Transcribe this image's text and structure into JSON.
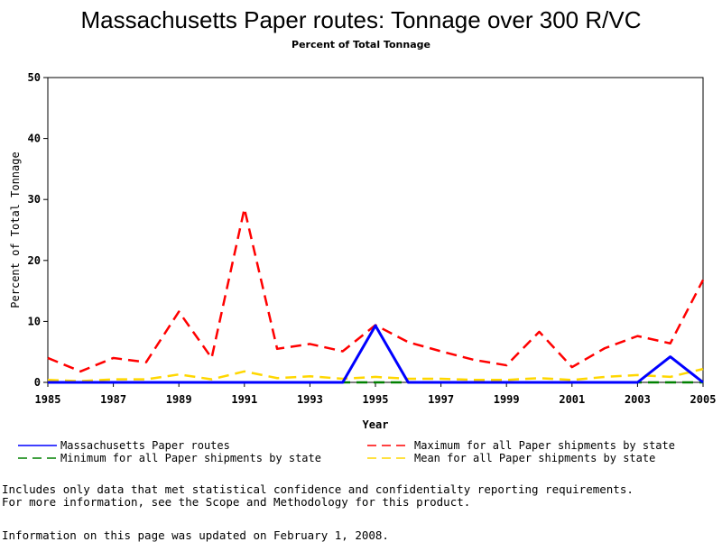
{
  "chart_data": {
    "type": "line",
    "title": "Massachusetts Paper routes: Tonnage over 300 R/VC",
    "subtitle": "Percent of Total Tonnage",
    "xlabel": "Year",
    "ylabel": "Percent of Total Tonnage",
    "xlim": [
      1985,
      2005
    ],
    "ylim": [
      0,
      50
    ],
    "x_ticks": [
      1985,
      1987,
      1989,
      1991,
      1993,
      1995,
      1997,
      1999,
      2001,
      2003,
      2005
    ],
    "y_ticks": [
      0,
      10,
      20,
      30,
      40,
      50
    ],
    "grid": false,
    "legend_position": "bottom",
    "series": [
      {
        "name": "Massachusetts Paper routes",
        "color": "#0000ff",
        "dash": "solid",
        "points": [
          [
            1985,
            0
          ],
          [
            1986,
            0
          ],
          [
            1987,
            0
          ],
          [
            1988,
            0
          ],
          [
            1989,
            0
          ],
          [
            1990,
            0
          ],
          [
            1991,
            0
          ],
          [
            1992,
            0
          ],
          [
            1993,
            0
          ],
          [
            1994,
            0
          ],
          [
            1995,
            9.3
          ],
          [
            1996,
            0
          ],
          [
            1997,
            0
          ],
          [
            1998,
            0
          ],
          [
            1999,
            0
          ],
          [
            2000,
            0
          ],
          [
            2001,
            0
          ],
          [
            2002,
            0
          ],
          [
            2003,
            0
          ],
          [
            2004,
            4.2
          ],
          [
            2005,
            0
          ]
        ]
      },
      {
        "name": "Maximum for all Paper shipments by state",
        "color": "#ff0000",
        "dash": "dashed",
        "points": [
          [
            1985,
            4
          ],
          [
            1986,
            1.8
          ],
          [
            1987,
            4
          ],
          [
            1988,
            3.3
          ],
          [
            1989,
            11.6
          ],
          [
            1990,
            4
          ],
          [
            1991,
            28.5
          ],
          [
            1992,
            5.5
          ],
          [
            1993,
            6.3
          ],
          [
            1994,
            5.1
          ],
          [
            1995,
            9.4
          ],
          [
            1996,
            6.6
          ],
          [
            1997,
            5.1
          ],
          [
            1998,
            3.7
          ],
          [
            1999,
            2.8
          ],
          [
            2000,
            8.3
          ],
          [
            2001,
            2.5
          ],
          [
            2002,
            5.6
          ],
          [
            2003,
            7.6
          ],
          [
            2004,
            6.4
          ],
          [
            2005,
            16.8
          ]
        ]
      },
      {
        "name": "Minimum for all Paper shipments by state",
        "color": "#008000",
        "dash": "dashed",
        "points": [
          [
            1985,
            0
          ],
          [
            1986,
            0
          ],
          [
            1987,
            0
          ],
          [
            1988,
            0
          ],
          [
            1989,
            0
          ],
          [
            1990,
            0
          ],
          [
            1991,
            0
          ],
          [
            1992,
            0
          ],
          [
            1993,
            0
          ],
          [
            1994,
            0
          ],
          [
            1995,
            0
          ],
          [
            1996,
            0
          ],
          [
            1997,
            0
          ],
          [
            1998,
            0
          ],
          [
            1999,
            0
          ],
          [
            2000,
            0
          ],
          [
            2001,
            0
          ],
          [
            2002,
            0
          ],
          [
            2003,
            0
          ],
          [
            2004,
            0
          ],
          [
            2005,
            0
          ]
        ]
      },
      {
        "name": "Mean for all Paper shipments by state",
        "color": "#ffd700",
        "dash": "dashed",
        "points": [
          [
            1985,
            0.4
          ],
          [
            1986,
            0.2
          ],
          [
            1987,
            0.5
          ],
          [
            1988,
            0.5
          ],
          [
            1989,
            1.3
          ],
          [
            1990,
            0.5
          ],
          [
            1991,
            1.8
          ],
          [
            1992,
            0.7
          ],
          [
            1993,
            1.0
          ],
          [
            1994,
            0.6
          ],
          [
            1995,
            0.9
          ],
          [
            1996,
            0.6
          ],
          [
            1997,
            0.6
          ],
          [
            1998,
            0.4
          ],
          [
            1999,
            0.4
          ],
          [
            2000,
            0.7
          ],
          [
            2001,
            0.4
          ],
          [
            2002,
            0.9
          ],
          [
            2003,
            1.2
          ],
          [
            2004,
            0.9
          ],
          [
            2005,
            2.2
          ]
        ]
      }
    ],
    "legend_order": [
      0,
      1,
      2,
      3
    ]
  },
  "footnotes": {
    "line1": "Includes only data that met statistical confidence and confidentialty reporting requirements.",
    "line2": "For more information, see the Scope and Methodology for this product.",
    "updated": "Information on this page was updated on February 1, 2008."
  }
}
